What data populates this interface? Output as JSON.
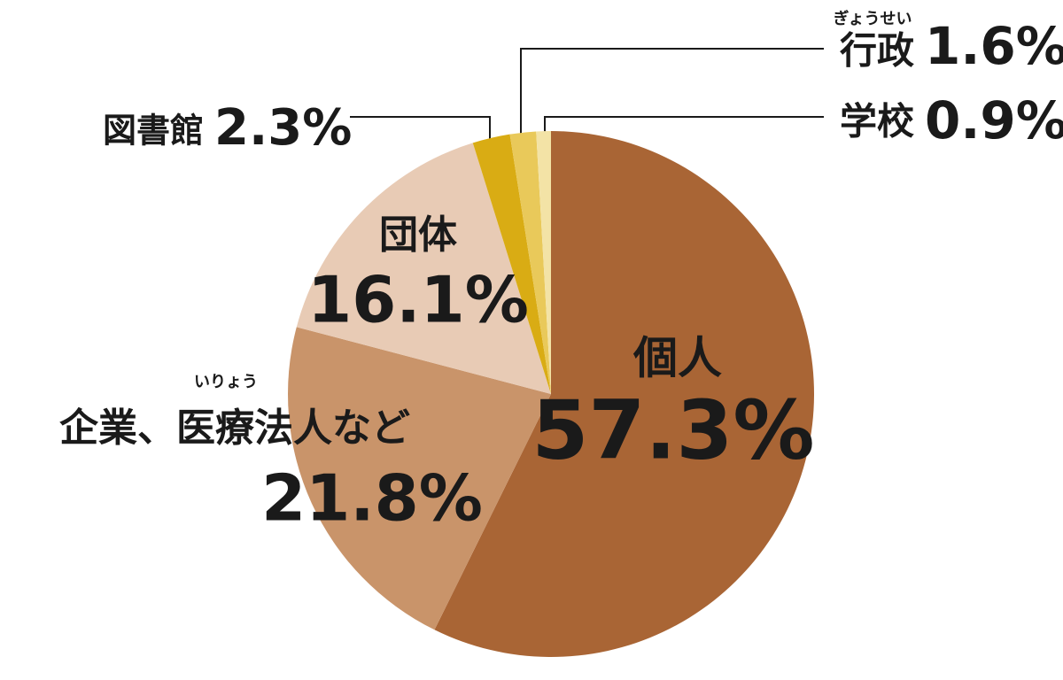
{
  "chart_data": {
    "type": "pie",
    "categories": [
      "個人",
      "企業、医療法人など",
      "団体",
      "図書館",
      "行政",
      "学校"
    ],
    "category_readings": [
      null,
      "いりょう",
      null,
      null,
      "ぎょうせい",
      null
    ],
    "values": [
      57.3,
      21.8,
      16.1,
      2.3,
      1.6,
      0.9
    ],
    "value_labels": [
      "57.3%",
      "21.8%",
      "16.1%",
      "2.3%",
      "1.6%",
      "0.9%"
    ],
    "colors": [
      "#a96535",
      "#c9946a",
      "#e8cbb5",
      "#d9ac14",
      "#e9c95a",
      "#f3e3a6"
    ]
  }
}
